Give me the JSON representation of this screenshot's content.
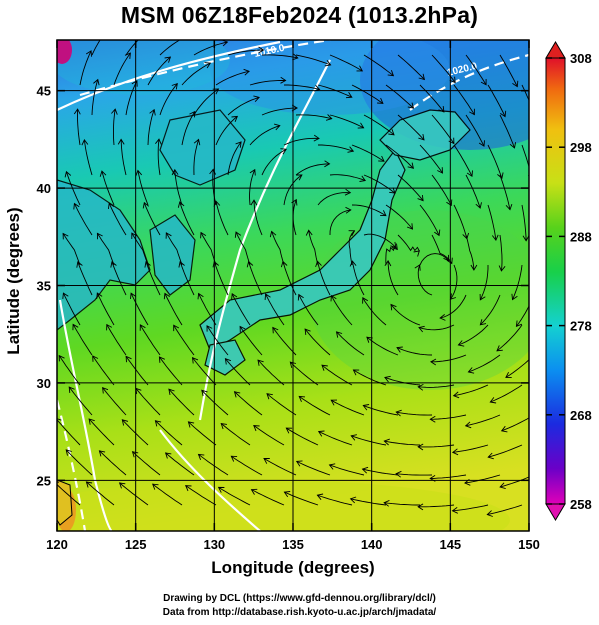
{
  "title": "MSM 06Z18Feb2024 (1013.2hPa)",
  "credits": {
    "line1": "Drawing by DCL (https://www.gfd-dennou.org/library/dcl/)",
    "line2": "Data from http://database.rish.kyoto-u.ac.jp/arch/jmadata/"
  },
  "chart_data": {
    "type": "heatmap",
    "title": "MSM 06Z18Feb2024 (1013.2hPa)",
    "xlabel": "Longitude (degrees)",
    "ylabel": "Latitude  (degrees)",
    "xlim": [
      120,
      150
    ],
    "ylim": [
      22.4,
      47.6
    ],
    "x_ticks": [
      120,
      125,
      130,
      135,
      140,
      145,
      150
    ],
    "y_ticks": [
      25,
      30,
      35,
      40,
      45
    ],
    "grid": true,
    "colorbar": {
      "ticks": [
        258,
        268,
        278,
        288,
        298,
        308
      ],
      "range": [
        258,
        308
      ],
      "position": "right"
    },
    "contours": [
      {
        "label": "1010.0",
        "color": "#ffffff"
      },
      {
        "label": "1020.0",
        "color": "#ffffff"
      }
    ],
    "overlays": [
      "coastlines",
      "wind streamlines"
    ]
  }
}
